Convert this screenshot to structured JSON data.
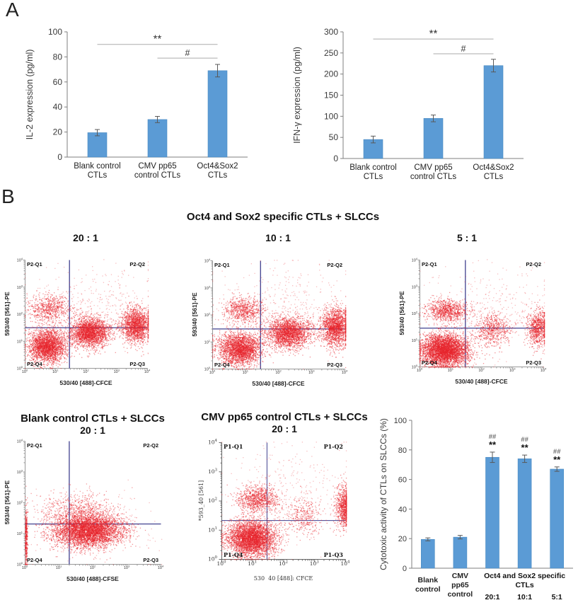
{
  "panels": {
    "a_label": "A",
    "b_label": "B"
  },
  "panel_b": {
    "title": "Oct4 and Sox2 specific CTLs + SLCCs",
    "ratios": [
      "20 : 1",
      "10 : 1",
      "5 : 1"
    ],
    "bottom_titles": [
      {
        "line1": "Blank control CTLs + SLCCs",
        "line2": "20 : 1"
      },
      {
        "line1": "CMV pp65 control CTLs + SLCCs",
        "line2": "20 : 1"
      }
    ]
  },
  "colors": {
    "bar": "#5b9bd5",
    "bar_edge": "#4a8bc2",
    "error": "#595959",
    "sig_line": "#ababab",
    "axis": "#7f7f7f",
    "point": "#e8242b",
    "crosshair": "#41418f"
  },
  "chart_data": [
    {
      "id": "il2",
      "type": "bar",
      "ylabel": "IL-2 expression (pg/ml)",
      "ylim": [
        0,
        100
      ],
      "yticks": [
        0,
        20,
        40,
        60,
        80,
        100
      ],
      "categories": [
        "Blank control\nCTLs",
        "CMV pp65\ncontrol CTLs",
        "Oct4&Sox2\nCTLs"
      ],
      "values": [
        19.5,
        30,
        69
      ],
      "errors": [
        2.5,
        2.5,
        5
      ],
      "sig": [
        {
          "from": 0,
          "to": 2,
          "y": 90,
          "label": "**"
        },
        {
          "from": 1,
          "to": 2,
          "y": 79,
          "label": "#"
        }
      ]
    },
    {
      "id": "ifng",
      "type": "bar",
      "ylabel": "IFN-γ expression (pg/ml)",
      "ylim": [
        0,
        300
      ],
      "yticks": [
        0,
        50,
        100,
        150,
        200,
        250,
        300
      ],
      "categories": [
        "Blank control\nCTLs",
        "CMV pp65\ncontrol CTLs",
        "Oct4&Sox2\nCTLs"
      ],
      "values": [
        45,
        95,
        220
      ],
      "errors": [
        8,
        8,
        15
      ],
      "sig": [
        {
          "from": 0,
          "to": 2,
          "y": 283,
          "label": "**"
        },
        {
          "from": 1,
          "to": 2,
          "y": 248,
          "label": "#"
        }
      ]
    },
    {
      "id": "ctl20",
      "type": "scatter",
      "style": "flow",
      "seed": 11,
      "xlabel": "530/40 [488]-CFCE",
      "ylabel": "593/40 [561]-PE",
      "xlog_range": [
        0,
        4
      ],
      "ylog_range": [
        0,
        4
      ],
      "ticks": [
        0,
        1,
        2,
        3,
        4
      ],
      "quadrants": {
        "q1": "P2-Q1",
        "q2": "P2-Q2",
        "q3": "P2-Q3",
        "q4": "P2-Q4"
      },
      "crosshair": {
        "x": 1.45,
        "y": 1.5
      },
      "clusters": [
        {
          "cx": 0.72,
          "cy": 0.82,
          "sx": 0.3,
          "sy": 0.3,
          "n": 2600
        },
        {
          "cx": 0.82,
          "cy": 2.18,
          "sx": 0.33,
          "sy": 0.27,
          "n": 650
        },
        {
          "cx": 2.12,
          "cy": 1.33,
          "sx": 0.32,
          "sy": 0.27,
          "n": 2400
        },
        {
          "cx": 3.62,
          "cy": 1.6,
          "sx": 0.24,
          "sy": 0.32,
          "n": 1700
        },
        {
          "cx": 2.2,
          "cy": 2.3,
          "sx": 1.05,
          "sy": 0.75,
          "n": 380,
          "alpha": 0.3
        }
      ]
    },
    {
      "id": "ctl10",
      "type": "scatter",
      "style": "flow",
      "seed": 22,
      "xlabel": "530/40 [488]-CFCE",
      "ylabel": "593/40 [561]-PE",
      "xlog_range": [
        0,
        4
      ],
      "ylog_range": [
        0,
        4
      ],
      "ticks": [
        0,
        1,
        2,
        3,
        4
      ],
      "quadrants": {
        "q1": "P2-Q1",
        "q2": "P2-Q2",
        "q3": "P2-Q3",
        "q4": "P2-Q4"
      },
      "crosshair": {
        "x": 1.45,
        "y": 1.48
      },
      "clusters": [
        {
          "cx": 0.82,
          "cy": 0.75,
          "sx": 0.32,
          "sy": 0.3,
          "n": 2600
        },
        {
          "cx": 0.95,
          "cy": 2.15,
          "sx": 0.3,
          "sy": 0.25,
          "n": 700
        },
        {
          "cx": 2.3,
          "cy": 1.32,
          "sx": 0.33,
          "sy": 0.28,
          "n": 2300
        },
        {
          "cx": 3.72,
          "cy": 1.55,
          "sx": 0.22,
          "sy": 0.35,
          "n": 1800
        },
        {
          "cx": 2.2,
          "cy": 2.3,
          "sx": 1.0,
          "sy": 0.8,
          "n": 380,
          "alpha": 0.3
        }
      ]
    },
    {
      "id": "ctl5",
      "type": "scatter",
      "style": "flow",
      "seed": 33,
      "xlabel": "530/40 [488]-CFCE",
      "ylabel": "593/40 [561]-PE",
      "xlog_range": [
        0,
        4
      ],
      "ylog_range": [
        0,
        4
      ],
      "ticks": [
        0,
        1,
        2,
        3,
        4
      ],
      "quadrants": {
        "q1": "P2-Q1",
        "q2": "P2-Q2",
        "q3": "P2-Q3",
        "q4": "P2-Q4"
      },
      "crosshair": {
        "x": 1.47,
        "y": 1.45
      },
      "clusters": [
        {
          "cx": 0.8,
          "cy": 0.62,
          "sx": 0.38,
          "sy": 0.3,
          "n": 4200
        },
        {
          "cx": 0.88,
          "cy": 2.1,
          "sx": 0.34,
          "sy": 0.22,
          "n": 900
        },
        {
          "cx": 2.35,
          "cy": 1.38,
          "sx": 0.28,
          "sy": 0.3,
          "n": 600,
          "alpha": 0.5
        },
        {
          "cx": 3.8,
          "cy": 1.45,
          "sx": 0.18,
          "sy": 0.35,
          "n": 800
        },
        {
          "cx": 2.3,
          "cy": 2.2,
          "sx": 1.0,
          "sy": 0.8,
          "n": 320,
          "alpha": 0.3
        }
      ]
    },
    {
      "id": "blank",
      "type": "scatter",
      "style": "flow",
      "seed": 44,
      "xlabel": "530/40 [488]-CFSE",
      "ylabel": "593/40 [561]-PE",
      "xlog_range": [
        0,
        4
      ],
      "ylog_range": [
        0,
        4
      ],
      "ticks": [
        0,
        1,
        2,
        3,
        4
      ],
      "quadrants": {
        "q1": "P2-Q1",
        "q2": "P2-Q2",
        "q3": "P2-Q3",
        "q4": "P2-Q4"
      },
      "crosshair": {
        "x": 1.3,
        "y": 1.31
      },
      "clusters": [
        {
          "cx": 1.85,
          "cy": 1.1,
          "sx": 0.5,
          "sy": 0.27,
          "n": 4500
        },
        {
          "cx": 1.55,
          "cy": 1.7,
          "sx": 0.55,
          "sy": 0.33,
          "n": 700,
          "alpha": 0.45
        },
        {
          "cx": 0.03,
          "cy": 0.85,
          "sx": 0.02,
          "sy": 0.5,
          "n": 350
        },
        {
          "cx": 2.0,
          "cy": 1.25,
          "sx": 0.95,
          "sy": 0.55,
          "n": 260,
          "alpha": 0.3
        }
      ]
    },
    {
      "id": "cmv",
      "type": "scatter",
      "style": "bd",
      "seed": 55,
      "xlabel": "530  40 [488]: CFCE",
      "ylabel": "*593_40 [561]",
      "xlog_range": [
        0,
        4
      ],
      "ylog_range": [
        0,
        4
      ],
      "ticks": [
        0,
        1,
        2,
        3,
        4
      ],
      "quadrants": {
        "q1": "P1-Q1",
        "q2": "P1-Q2",
        "q3": "P1-Q3",
        "q4": "P1-Q4"
      },
      "crosshair": {
        "x": 1.46,
        "y": 1.33
      },
      "clusters": [
        {
          "cx": 0.95,
          "cy": 0.72,
          "sx": 0.38,
          "sy": 0.3,
          "n": 3800
        },
        {
          "cx": 1.15,
          "cy": 2.05,
          "sx": 0.33,
          "sy": 0.22,
          "n": 900
        },
        {
          "cx": 3.95,
          "cy": 1.8,
          "sx": 0.13,
          "sy": 0.35,
          "n": 800
        },
        {
          "cx": 2.65,
          "cy": 1.5,
          "sx": 0.3,
          "sy": 0.3,
          "n": 320,
          "alpha": 0.5
        },
        {
          "cx": 2.1,
          "cy": 2.3,
          "sx": 1.05,
          "sy": 0.85,
          "n": 320,
          "alpha": 0.3
        }
      ]
    },
    {
      "id": "cytotox",
      "type": "bar",
      "ylabel": "Cytotoxic activity of CTLs on SLCCs (%)",
      "ylim": [
        0,
        100
      ],
      "yticks": [
        0,
        20,
        40,
        60,
        80,
        100
      ],
      "categories": [
        "Blank\ncontrol",
        "CMV\npp65\ncontrol",
        "20:1",
        "10:1",
        "5:1"
      ],
      "values": [
        19.5,
        21,
        75,
        74,
        67
      ],
      "errors": [
        1,
        1.2,
        3.5,
        2.5,
        1.5
      ],
      "group_label": {
        "text": "Oct4 and Sox2 specific\nCTLs",
        "from": 2,
        "to": 4
      },
      "annotations": [
        {
          "bar": 2,
          "lines": [
            "##",
            "**"
          ]
        },
        {
          "bar": 3,
          "lines": [
            "##",
            "**"
          ]
        },
        {
          "bar": 4,
          "lines": [
            "##",
            "**"
          ]
        }
      ]
    }
  ]
}
